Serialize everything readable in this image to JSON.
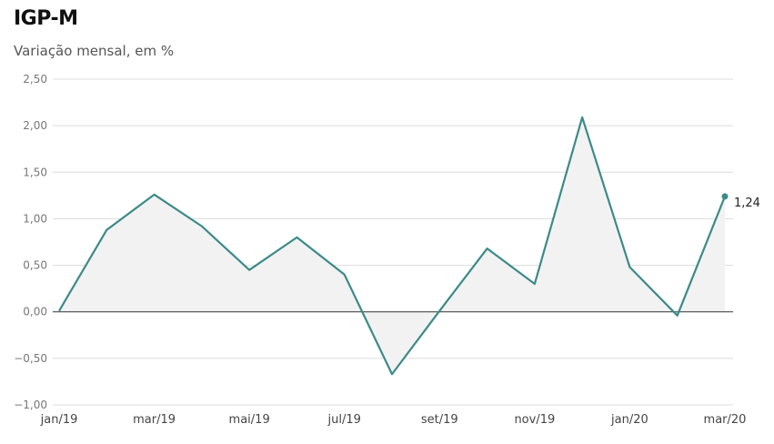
{
  "title": "IGP-M",
  "subtitle": "Variação mensal, em %",
  "chart_data": {
    "type": "line",
    "title": "IGP-M",
    "subtitle": "Variação mensal, em %",
    "ylim": [
      -1.0,
      2.5
    ],
    "yticks": [
      2.5,
      2.0,
      1.5,
      1.0,
      0.5,
      0.0,
      -0.5,
      -1.0
    ],
    "ytick_labels": [
      "2,50",
      "2,00",
      "1,50",
      "1,00",
      "0,50",
      "0,00",
      "−0,50",
      "−1,00"
    ],
    "x": [
      "jan/19",
      "fev/19",
      "mar/19",
      "abr/19",
      "mai/19",
      "jun/19",
      "jul/19",
      "ago/19",
      "set/19",
      "out/19",
      "nov/19",
      "dez/19",
      "jan/20",
      "fev/20",
      "mar/20"
    ],
    "xtick_labels": [
      "jan/19",
      "mar/19",
      "mai/19",
      "jul/19",
      "set/19",
      "nov/19",
      "jan/20",
      "mar/20"
    ],
    "xtick_index": [
      0,
      2,
      4,
      6,
      8,
      10,
      12,
      14
    ],
    "series": [
      {
        "values": [
          0.01,
          0.88,
          1.26,
          0.92,
          0.45,
          0.8,
          0.4,
          -0.67,
          0.01,
          0.68,
          0.3,
          2.09,
          0.48,
          -0.04,
          1.24
        ]
      }
    ],
    "end_label": "1,24",
    "grid": true,
    "colors": {
      "line": "#3c8a89",
      "area": "#f2f2f2"
    }
  }
}
